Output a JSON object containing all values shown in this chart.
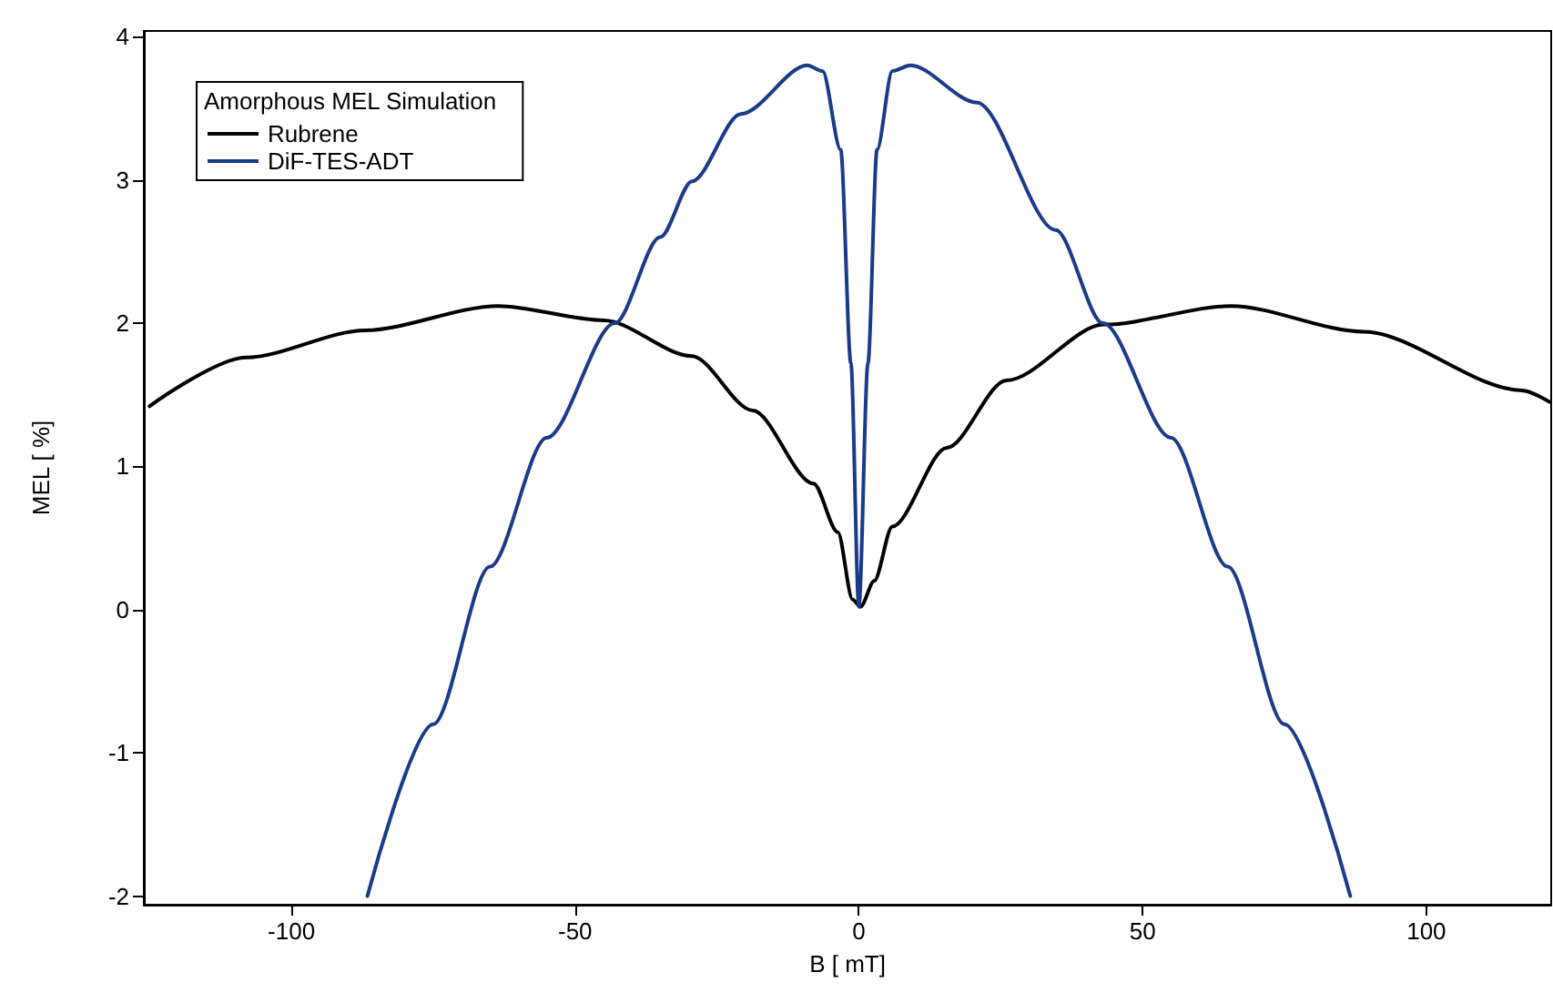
{
  "chart_data": {
    "type": "line",
    "xlabel": "B [ mT]",
    "ylabel": "MEL [ %]",
    "legend_title": "Amorphous MEL Simulation",
    "xlim": [
      -126,
      122
    ],
    "ylim": [
      -2.06,
      4.04
    ],
    "xticks": [
      -100,
      -50,
      0,
      50,
      100
    ],
    "yticks": [
      -2,
      -1,
      0,
      1,
      2,
      3,
      4
    ],
    "grid": false,
    "legend": "top left",
    "marker": "none",
    "line_style": "solid",
    "series": [
      {
        "name": "Rubrene",
        "color": "#000000",
        "x": [
          -125,
          -108,
          -87,
          -63.6,
          -45,
          -29.4,
          -18.7,
          -8,
          -3.7,
          -1.1,
          0.3,
          2.7,
          5.9,
          15.5,
          26,
          43.2,
          65.6,
          89,
          116.9,
          121.7
        ],
        "values": [
          1.42,
          1.76,
          1.95,
          2.12,
          2.02,
          1.77,
          1.39,
          0.88,
          0.54,
          0.07,
          0.02,
          0.2,
          0.58,
          1.13,
          1.6,
          1.99,
          2.12,
          1.94,
          1.53,
          1.45
        ]
      },
      {
        "name": "DiF-TES-ADT",
        "color": "#1a3a8a",
        "x": [
          -86.6,
          -75,
          -65,
          -55,
          -43,
          -35,
          -29.4,
          -20.8,
          -9.1,
          -6.4,
          -3.2,
          -1.4,
          0,
          1.6,
          3.2,
          5.9,
          9.1,
          20.8,
          34.7,
          43,
          55,
          65,
          75,
          86.6
        ],
        "values": [
          -2,
          -0.8,
          0.3,
          1.2,
          2.0,
          2.6,
          2.99,
          3.46,
          3.8,
          3.76,
          3.21,
          1.72,
          0.02,
          1.72,
          3.21,
          3.76,
          3.8,
          3.54,
          2.65,
          2.0,
          1.2,
          0.3,
          -0.8,
          -2
        ]
      }
    ]
  }
}
